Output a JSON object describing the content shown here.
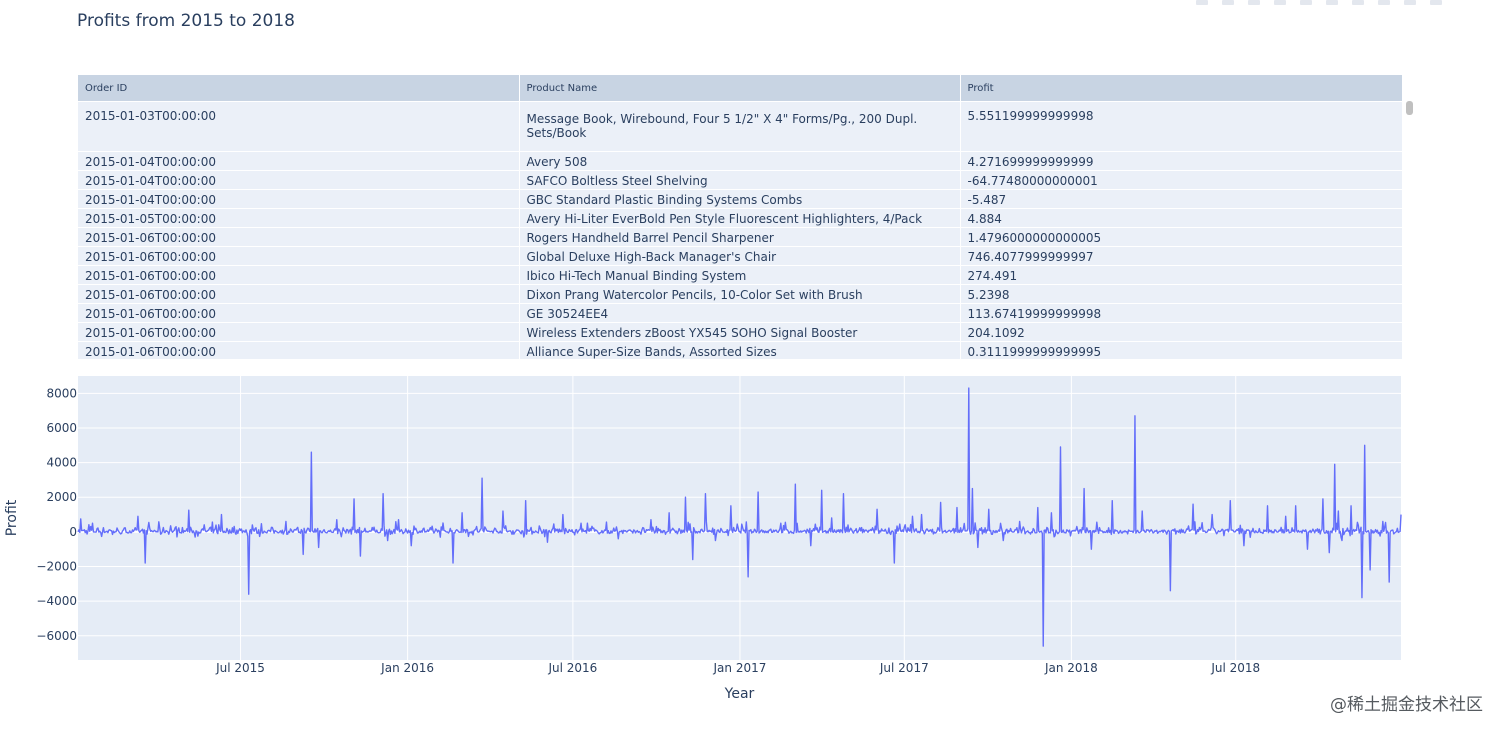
{
  "title": "Profits from 2015 to 2018",
  "table": {
    "headers": [
      "Order ID",
      "Product Name",
      "Profit"
    ],
    "rows": [
      [
        "2015-01-03T00:00:00",
        "Message Book, Wirebound, Four 5 1/2\" X 4\" Forms/Pg., 200 Dupl. Sets/Book",
        "5.551199999999998"
      ],
      [
        "2015-01-04T00:00:00",
        "Avery 508",
        "4.271699999999999"
      ],
      [
        "2015-01-04T00:00:00",
        "SAFCO Boltless Steel Shelving",
        "-64.77480000000001"
      ],
      [
        "2015-01-04T00:00:00",
        "GBC Standard Plastic Binding Systems Combs",
        "-5.487"
      ],
      [
        "2015-01-05T00:00:00",
        "Avery Hi-Liter EverBold Pen Style Fluorescent Highlighters, 4/Pack",
        "4.884"
      ],
      [
        "2015-01-06T00:00:00",
        "Rogers Handheld Barrel Pencil Sharpener",
        "1.4796000000000005"
      ],
      [
        "2015-01-06T00:00:00",
        "Global Deluxe High-Back Manager's Chair",
        "746.4077999999997"
      ],
      [
        "2015-01-06T00:00:00",
        "Ibico Hi-Tech Manual Binding System",
        "274.491"
      ],
      [
        "2015-01-06T00:00:00",
        "Dixon Prang Watercolor Pencils, 10-Color Set with Brush",
        "5.2398"
      ],
      [
        "2015-01-06T00:00:00",
        "GE 30524EE4",
        "113.67419999999998"
      ],
      [
        "2015-01-06T00:00:00",
        "Wireless Extenders zBoost YX545 SOHO Signal Booster",
        "204.1092"
      ],
      [
        "2015-01-06T00:00:00",
        "Alliance Super-Size Bands, Assorted Sizes",
        "0.3111999999999995"
      ]
    ]
  },
  "chart_data": {
    "type": "line",
    "title": "Profits from 2015 to 2018",
    "xlabel": "Year",
    "ylabel": "Profit",
    "xlim": [
      "2015-01-03",
      "2018-12-30"
    ],
    "ylim": [
      -7400,
      9000
    ],
    "yticks": [
      -6000,
      -4000,
      -2000,
      0,
      2000,
      4000,
      6000,
      8000
    ],
    "ytick_labels": [
      "−6000",
      "−4000",
      "−2000",
      "0",
      "2000",
      "4000",
      "6000",
      "8000"
    ],
    "xticks": [
      "2015-07-01",
      "2016-01-01",
      "2016-07-01",
      "2017-01-01",
      "2017-07-01",
      "2018-01-01",
      "2018-07-01"
    ],
    "xtick_labels": [
      "Jul 2015",
      "Jan 2016",
      "Jul 2016",
      "Jan 2017",
      "Jul 2017",
      "Jan 2018",
      "Jul 2018"
    ],
    "grid": true,
    "line_color": "#636efa",
    "plot_bg": "#e5ecf6",
    "series": [
      {
        "x": [
          "2015-01-03",
          "2015-01-06",
          "2015-02-10",
          "2015-03-10",
          "2015-03-18",
          "2015-03-23",
          "2015-04-15",
          "2015-05-05",
          "2015-05-12",
          "2015-06-10",
          "2015-07-10",
          "2015-07-14",
          "2015-08-20",
          "2015-09-08",
          "2015-09-17",
          "2015-09-25",
          "2015-10-15",
          "2015-11-03",
          "2015-11-10",
          "2015-12-05",
          "2015-12-10",
          "2015-12-22",
          "2016-01-05",
          "2016-02-20",
          "2016-03-01",
          "2016-03-23",
          "2016-04-15",
          "2016-05-10",
          "2016-06-03",
          "2016-06-20",
          "2016-07-10",
          "2016-08-20",
          "2016-09-25",
          "2016-10-15",
          "2016-11-02",
          "2016-11-10",
          "2016-11-24",
          "2016-12-05",
          "2016-12-22",
          "2017-01-10",
          "2017-01-21",
          "2017-02-15",
          "2017-03-03",
          "2017-03-20",
          "2017-04-01",
          "2017-04-12",
          "2017-04-25",
          "2017-06-01",
          "2017-06-20",
          "2017-07-10",
          "2017-07-20",
          "2017-08-10",
          "2017-08-28",
          "2017-09-10",
          "2017-09-14",
          "2017-09-20",
          "2017-10-02",
          "2017-10-18",
          "2017-11-05",
          "2017-11-25",
          "2017-12-01",
          "2017-12-10",
          "2017-12-20",
          "2018-01-15",
          "2018-01-23",
          "2018-02-15",
          "2018-03-12",
          "2018-03-20",
          "2018-04-20",
          "2018-05-15",
          "2018-06-05",
          "2018-06-25",
          "2018-07-10",
          "2018-08-05",
          "2018-08-25",
          "2018-09-05",
          "2018-09-18",
          "2018-10-05",
          "2018-10-12",
          "2018-10-18",
          "2018-10-22",
          "2018-10-26",
          "2018-11-05",
          "2018-11-17",
          "2018-11-20",
          "2018-11-26",
          "2018-12-10",
          "2018-12-17",
          "2018-12-30"
        ],
        "y": [
          5.55,
          746.41,
          -150,
          900,
          -1800,
          200,
          350,
          1250,
          -300,
          1000,
          -3600,
          400,
          600,
          -1300,
          4600,
          -900,
          700,
          1900,
          -1400,
          2200,
          -500,
          700,
          -800,
          -1800,
          1100,
          3100,
          1200,
          1800,
          -600,
          1000,
          500,
          -400,
          700,
          1100,
          2000,
          -1600,
          2200,
          -500,
          1500,
          -2600,
          2300,
          500,
          2750,
          -800,
          2400,
          800,
          2200,
          1300,
          -1800,
          900,
          1000,
          1700,
          1400,
          8300,
          2500,
          -900,
          1300,
          -500,
          600,
          1400,
          -6600,
          1100,
          4900,
          2500,
          -1000,
          1800,
          6700,
          1200,
          -3400,
          1600,
          1000,
          1800,
          -800,
          1500,
          900,
          1500,
          -1000,
          1900,
          -1200,
          3900,
          1200,
          -500,
          1500,
          -3800,
          5000,
          -2200,
          600,
          -2900,
          1000
        ]
      }
    ]
  },
  "watermark": "@稀土掘金技术社区"
}
